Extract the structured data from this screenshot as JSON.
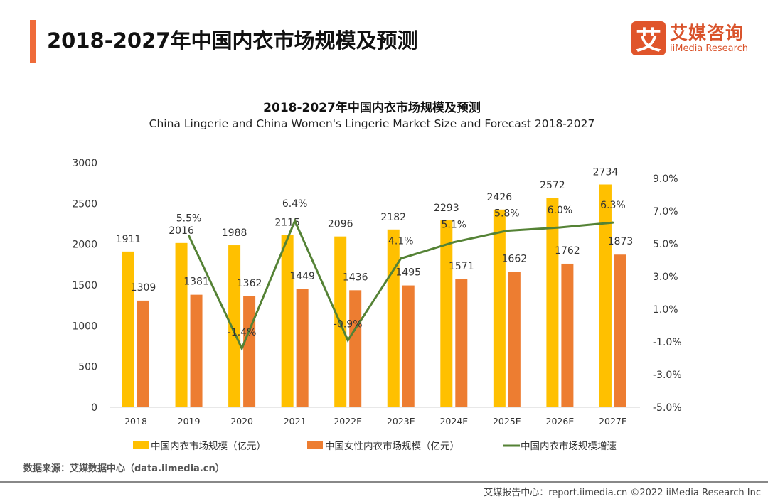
{
  "header": {
    "title": "2018-2027年中国内衣市场规模及预测",
    "logo_cn": "艾媒咨询",
    "logo_en": "iiMedia Research",
    "logo_mark": "艾"
  },
  "chart_data": {
    "type": "bar+line",
    "title": "2018-2027年中国内衣市场规模及预测",
    "subtitle": "China Lingerie and China Women's Lingerie Market Size and Forecast 2018-2027",
    "categories": [
      "2018",
      "2019",
      "2020",
      "2021",
      "2022E",
      "2023E",
      "2024E",
      "2025E",
      "2026E",
      "2027E"
    ],
    "series": [
      {
        "name": "中国内衣市场规模（亿元）",
        "type": "bar",
        "axis": "left",
        "color": "#ffc000",
        "values": [
          1911,
          2016,
          1988,
          2115,
          2096,
          2182,
          2293,
          2426,
          2572,
          2734
        ]
      },
      {
        "name": "中国女性内衣市场规模（亿元）",
        "type": "bar",
        "axis": "left",
        "color": "#ed7d31",
        "values": [
          1309,
          1381,
          1362,
          1449,
          1436,
          1495,
          1571,
          1662,
          1762,
          1873
        ]
      },
      {
        "name": "中国内衣市场规模增速",
        "type": "line",
        "axis": "right",
        "color": "#548235",
        "values": [
          null,
          5.5,
          -1.4,
          6.4,
          -0.9,
          4.1,
          5.1,
          5.8,
          6.0,
          6.3
        ],
        "labels": [
          null,
          "5.5%",
          "-1.4%",
          "6.4%",
          "-0.9%",
          "4.1%",
          "5.1%",
          "5.8%",
          "6.0%",
          "6.3%"
        ]
      }
    ],
    "y_left": {
      "range": [
        0,
        3000
      ],
      "ticks": [
        "0",
        "500",
        "1000",
        "1500",
        "2000",
        "2500",
        "3000"
      ]
    },
    "y_right": {
      "range": [
        -5,
        9
      ],
      "ticks": [
        "-5.0%",
        "-3.0%",
        "-1.0%",
        "1.0%",
        "3.0%",
        "5.0%",
        "7.0%",
        "9.0%"
      ]
    },
    "grid": false,
    "legend": "bottom"
  },
  "footer": {
    "source": "数据来源：艾媒数据中心（data.iimedia.cn）",
    "credit": "艾媒报告中心：report.iimedia.cn   ©2022  iiMedia Research  Inc"
  }
}
